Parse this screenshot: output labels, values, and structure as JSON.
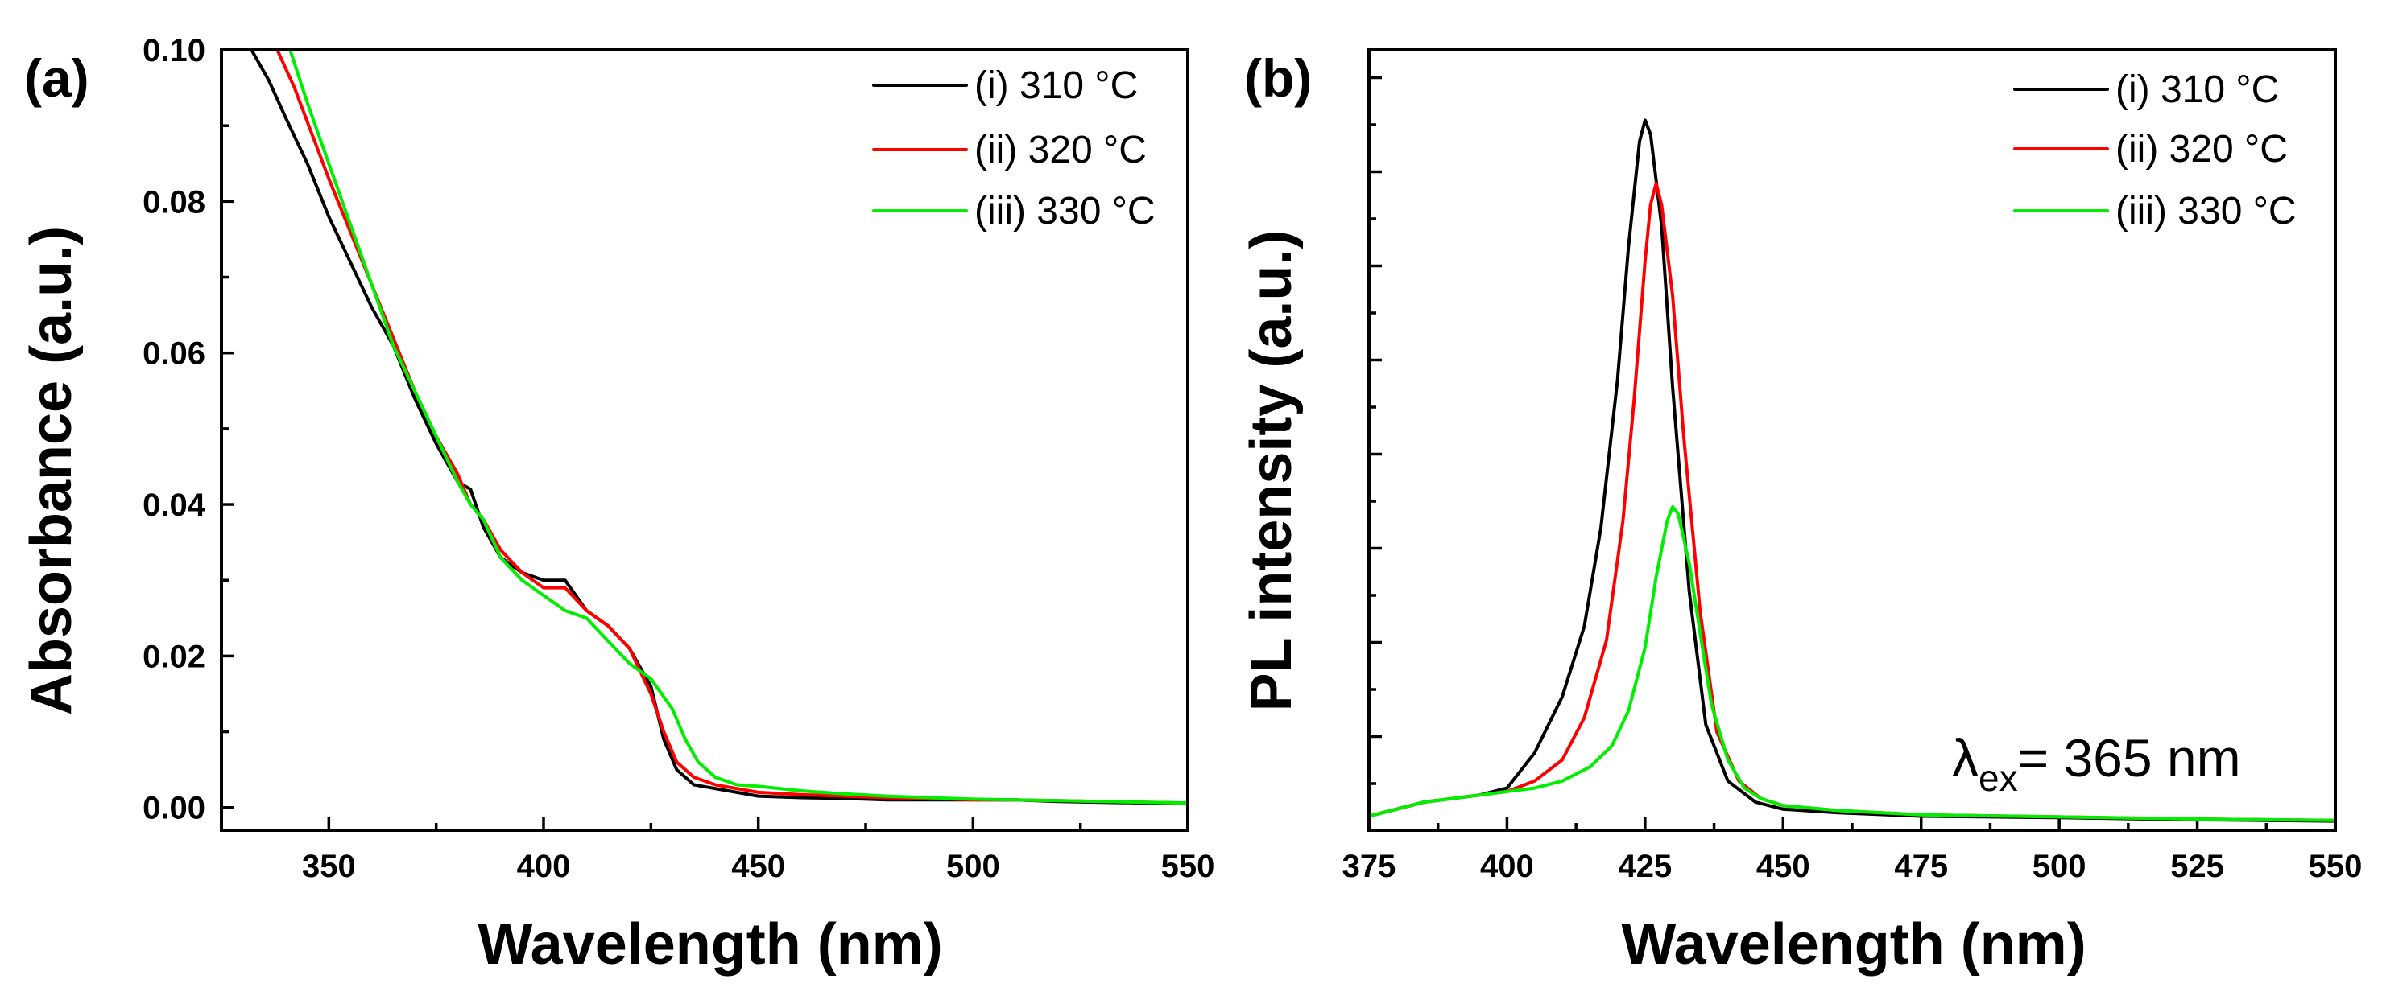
{
  "figure": {
    "colors": {
      "i": "#000000",
      "ii": "#ff0000",
      "iii": "#00ee00"
    }
  },
  "chart_data": [
    {
      "type": "line",
      "panel_label": "(a)",
      "title": "",
      "xlabel": "Wavelength (nm)",
      "ylabel": "Absorbance (a.u.)",
      "xlim": [
        325,
        550
      ],
      "ylim": [
        -0.003,
        0.1
      ],
      "xticks": [
        350,
        400,
        450,
        500,
        550
      ],
      "xtick_labels": [
        "350",
        "400",
        "450",
        "500",
        "550"
      ],
      "yticks": [
        0.0,
        0.02,
        0.04,
        0.06,
        0.08,
        0.1
      ],
      "ytick_labels": [
        "0.00",
        "0.02",
        "0.04",
        "0.06",
        "0.08",
        "0.10"
      ],
      "legend_position": "top-right",
      "series": [
        {
          "name": "(i) 310 °C",
          "color_key": "i",
          "x": [
            332,
            336,
            340,
            345,
            350,
            355,
            360,
            365,
            370,
            375,
            380,
            383,
            386,
            390,
            395,
            400,
            405,
            410,
            415,
            420,
            425,
            428,
            431,
            435,
            440,
            445,
            450,
            460,
            470,
            480,
            490,
            500,
            510,
            520,
            530,
            540,
            550
          ],
          "y": [
            0.1,
            0.096,
            0.091,
            0.085,
            0.078,
            0.072,
            0.066,
            0.061,
            0.054,
            0.048,
            0.043,
            0.042,
            0.037,
            0.033,
            0.031,
            0.03,
            0.03,
            0.026,
            0.024,
            0.021,
            0.016,
            0.009,
            0.005,
            0.003,
            0.0025,
            0.002,
            0.0015,
            0.0013,
            0.0012,
            0.001,
            0.001,
            0.001,
            0.001,
            0.0008,
            0.0007,
            0.0006,
            0.0005
          ]
        },
        {
          "name": "(ii) 320 °C",
          "color_key": "ii",
          "x": [
            338,
            342,
            346,
            350,
            355,
            360,
            365,
            370,
            375,
            380,
            383,
            386,
            390,
            395,
            400,
            405,
            410,
            415,
            420,
            425,
            428,
            431,
            435,
            440,
            445,
            450,
            460,
            470,
            480,
            490,
            500,
            510,
            520,
            530,
            540,
            550
          ],
          "y": [
            0.1,
            0.095,
            0.089,
            0.083,
            0.076,
            0.069,
            0.062,
            0.055,
            0.049,
            0.044,
            0.04,
            0.038,
            0.034,
            0.031,
            0.029,
            0.029,
            0.026,
            0.024,
            0.021,
            0.015,
            0.01,
            0.006,
            0.004,
            0.003,
            0.0025,
            0.002,
            0.0017,
            0.0015,
            0.0013,
            0.0012,
            0.001,
            0.001,
            0.0009,
            0.0008,
            0.0007,
            0.0006
          ]
        },
        {
          "name": "(iii) 330 °C",
          "color_key": "iii",
          "x": [
            341,
            345,
            350,
            355,
            360,
            365,
            370,
            375,
            380,
            383,
            386,
            390,
            395,
            400,
            405,
            410,
            415,
            420,
            425,
            430,
            433,
            436,
            440,
            445,
            450,
            460,
            470,
            480,
            490,
            500,
            510,
            520,
            530,
            540,
            550
          ],
          "y": [
            0.1,
            0.093,
            0.085,
            0.077,
            0.069,
            0.061,
            0.055,
            0.049,
            0.043,
            0.04,
            0.038,
            0.033,
            0.03,
            0.028,
            0.026,
            0.025,
            0.022,
            0.019,
            0.017,
            0.013,
            0.009,
            0.006,
            0.004,
            0.003,
            0.0028,
            0.0022,
            0.0018,
            0.0015,
            0.0013,
            0.0011,
            0.001,
            0.0009,
            0.0008,
            0.0007,
            0.0006
          ]
        }
      ]
    },
    {
      "type": "line",
      "panel_label": "(b)",
      "title": "",
      "xlabel": "Wavelength (nm)",
      "ylabel": "PL intensity (a.u.)",
      "xlim": [
        375,
        550
      ],
      "ylim": [
        -0.01,
        1.1
      ],
      "xticks": [
        375,
        400,
        425,
        450,
        475,
        500,
        525,
        550
      ],
      "xtick_labels": [
        "375",
        "400",
        "425",
        "450",
        "475",
        "500",
        "525",
        "550"
      ],
      "yticks": [],
      "ytick_labels": [],
      "legend_position": "top-right",
      "annotation": {
        "lambda": "λ",
        "sub": "ex",
        "rest": "= 365 nm"
      },
      "series": [
        {
          "name": "(i) 310 °C",
          "color_key": "i",
          "x": [
            375,
            385,
            395,
            400,
            405,
            410,
            414,
            417,
            420,
            422,
            424,
            425,
            426,
            428,
            430,
            433,
            436,
            440,
            445,
            450,
            460,
            475,
            500,
            525,
            550
          ],
          "y": [
            0.01,
            0.03,
            0.04,
            0.05,
            0.1,
            0.18,
            0.28,
            0.42,
            0.63,
            0.82,
            0.97,
            1.0,
            0.98,
            0.85,
            0.62,
            0.33,
            0.14,
            0.06,
            0.03,
            0.02,
            0.015,
            0.01,
            0.008,
            0.005,
            0.003
          ]
        },
        {
          "name": "(ii) 320 °C",
          "color_key": "ii",
          "x": [
            375,
            385,
            395,
            400,
            405,
            410,
            414,
            418,
            421,
            423,
            425,
            426,
            427,
            428,
            430,
            432,
            435,
            438,
            442,
            446,
            450,
            460,
            475,
            500,
            525,
            550
          ],
          "y": [
            0.01,
            0.03,
            0.04,
            0.045,
            0.06,
            0.09,
            0.15,
            0.26,
            0.43,
            0.6,
            0.8,
            0.88,
            0.91,
            0.88,
            0.75,
            0.55,
            0.3,
            0.13,
            0.06,
            0.035,
            0.025,
            0.018,
            0.012,
            0.009,
            0.006,
            0.004
          ]
        },
        {
          "name": "(iii) 330 °C",
          "color_key": "iii",
          "x": [
            375,
            385,
            395,
            400,
            405,
            410,
            415,
            419,
            422,
            425,
            427,
            429,
            430,
            431,
            433,
            435,
            437,
            440,
            443,
            446,
            450,
            460,
            475,
            500,
            525,
            550
          ],
          "y": [
            0.01,
            0.03,
            0.04,
            0.045,
            0.05,
            0.06,
            0.08,
            0.11,
            0.16,
            0.25,
            0.35,
            0.43,
            0.45,
            0.44,
            0.37,
            0.27,
            0.17,
            0.09,
            0.05,
            0.035,
            0.025,
            0.018,
            0.012,
            0.009,
            0.006,
            0.004
          ]
        }
      ]
    }
  ]
}
